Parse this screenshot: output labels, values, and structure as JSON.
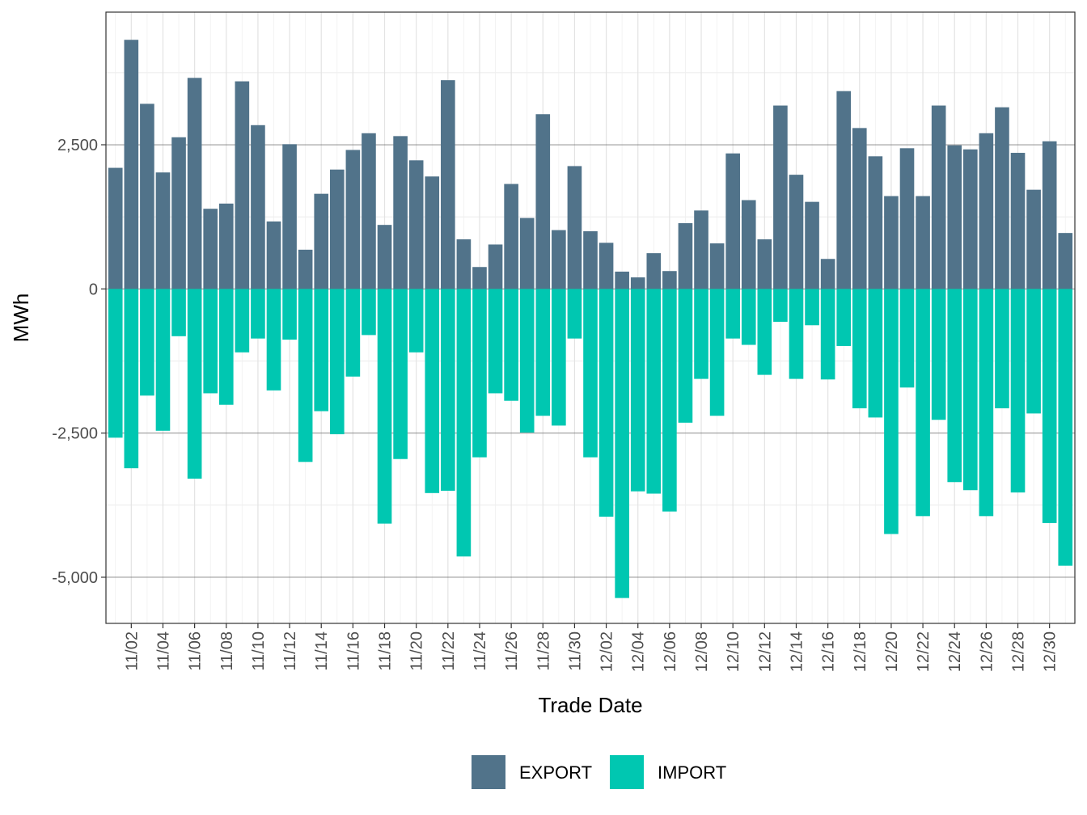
{
  "chart_data": {
    "type": "bar",
    "stacked": true,
    "xlabel": "Trade Date",
    "ylabel": "MWh",
    "ylim": [
      -5800,
      4800
    ],
    "yticks": [
      -5000,
      -2500,
      0,
      2500
    ],
    "ytick_labels": [
      "-5,000",
      "-2,500",
      "0",
      "2,500"
    ],
    "categories": [
      "11/01",
      "11/02",
      "11/03",
      "11/04",
      "11/05",
      "11/06",
      "11/07",
      "11/08",
      "11/09",
      "11/10",
      "11/11",
      "11/12",
      "11/13",
      "11/14",
      "11/15",
      "11/16",
      "11/17",
      "11/18",
      "11/19",
      "11/20",
      "11/21",
      "11/22",
      "11/23",
      "11/24",
      "11/25",
      "11/26",
      "11/27",
      "11/28",
      "11/29",
      "11/30",
      "12/01",
      "12/02",
      "12/03",
      "12/04",
      "12/05",
      "12/06",
      "12/07",
      "12/08",
      "12/09",
      "12/10",
      "12/11",
      "12/12",
      "12/13",
      "12/14",
      "12/15",
      "12/16",
      "12/17",
      "12/18",
      "12/19",
      "12/20",
      "12/21",
      "12/22",
      "12/23",
      "12/24",
      "12/25",
      "12/26",
      "12/27",
      "12/28",
      "12/29",
      "12/30",
      "12/31"
    ],
    "xtick_labels": [
      "11/02",
      "11/04",
      "11/06",
      "11/08",
      "11/10",
      "11/12",
      "11/14",
      "11/16",
      "11/18",
      "11/20",
      "11/22",
      "11/24",
      "11/26",
      "11/28",
      "11/30",
      "12/02",
      "12/04",
      "12/06",
      "12/08",
      "12/10",
      "12/12",
      "12/14",
      "12/16",
      "12/18",
      "12/20",
      "12/22",
      "12/24",
      "12/26",
      "12/28",
      "12/30"
    ],
    "grid": true,
    "legend_position": "bottom",
    "series": [
      {
        "name": "EXPORT",
        "color": "#51738a",
        "values": [
          2100,
          4320,
          3210,
          2020,
          2630,
          3660,
          1390,
          1480,
          3600,
          2840,
          1170,
          2510,
          680,
          1650,
          2070,
          2410,
          2700,
          1110,
          2650,
          2230,
          1950,
          3620,
          860,
          380,
          770,
          1820,
          1230,
          3030,
          1020,
          2130,
          1000,
          800,
          300,
          200,
          620,
          310,
          1140,
          1360,
          790,
          2350,
          1540,
          860,
          3180,
          1980,
          1510,
          520,
          3430,
          2790,
          2300,
          1610,
          2440,
          1610,
          3180,
          2490,
          2420,
          2700,
          3150,
          2360,
          1720,
          2560,
          970
        ]
      },
      {
        "name": "IMPORT",
        "color": "#00c7b1",
        "values": [
          -2580,
          -3110,
          -1850,
          -2460,
          -820,
          -3290,
          -1810,
          -2010,
          -1100,
          -860,
          -1760,
          -880,
          -3000,
          -2120,
          -2520,
          -1520,
          -800,
          -4070,
          -2950,
          -1100,
          -3540,
          -3500,
          -4640,
          -2920,
          -1810,
          -1940,
          -2490,
          -2200,
          -2370,
          -860,
          -2920,
          -3950,
          -5360,
          -3510,
          -3550,
          -3860,
          -2320,
          -1560,
          -2200,
          -860,
          -970,
          -1490,
          -570,
          -1560,
          -630,
          -1570,
          -990,
          -2070,
          -2230,
          -4250,
          -1710,
          -3940,
          -2270,
          -3350,
          -3490,
          -3940,
          -2070,
          -3530,
          -2160,
          -4060,
          -4800
        ]
      }
    ]
  }
}
